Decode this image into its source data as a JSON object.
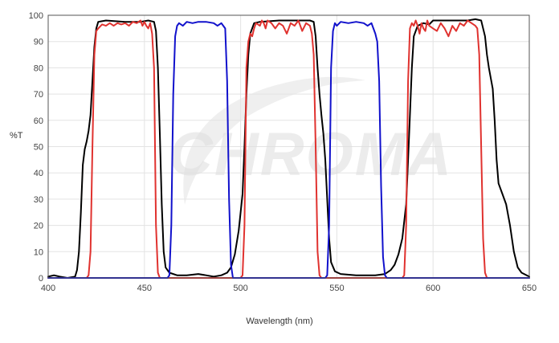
{
  "watermark": "CHROMA",
  "chart_data": {
    "type": "line",
    "title": "",
    "xlabel": "Wavelength (nm)",
    "ylabel": "%T",
    "xlim": [
      400,
      650
    ],
    "ylim": [
      0,
      100
    ],
    "xticks": [
      400,
      450,
      500,
      550,
      600,
      650
    ],
    "yticks": [
      0,
      10,
      20,
      30,
      40,
      50,
      60,
      70,
      80,
      90,
      100
    ],
    "grid": true,
    "legend": "none",
    "series": [
      {
        "color": "#000000",
        "points": [
          [
            400,
            0.5
          ],
          [
            403,
            1
          ],
          [
            406,
            0.5
          ],
          [
            410,
            0
          ],
          [
            414,
            0.5
          ],
          [
            415,
            3
          ],
          [
            416,
            10
          ],
          [
            417,
            25
          ],
          [
            418,
            43
          ],
          [
            419,
            49
          ],
          [
            420,
            52
          ],
          [
            421,
            56
          ],
          [
            422,
            62
          ],
          [
            423,
            75
          ],
          [
            424,
            88
          ],
          [
            425,
            95
          ],
          [
            426,
            97.5
          ],
          [
            430,
            98
          ],
          [
            440,
            97.5
          ],
          [
            448,
            97.5
          ],
          [
            452,
            98
          ],
          [
            455,
            97.5
          ],
          [
            456,
            94
          ],
          [
            457,
            80
          ],
          [
            458,
            55
          ],
          [
            459,
            28
          ],
          [
            460,
            10
          ],
          [
            461,
            4
          ],
          [
            463,
            2
          ],
          [
            467,
            1
          ],
          [
            472,
            1
          ],
          [
            478,
            1.5
          ],
          [
            482,
            1
          ],
          [
            486,
            0.5
          ],
          [
            490,
            1
          ],
          [
            493,
            2
          ],
          [
            495,
            4
          ],
          [
            497,
            9
          ],
          [
            499,
            18
          ],
          [
            501,
            32
          ],
          [
            502,
            50
          ],
          [
            503,
            70
          ],
          [
            504,
            85
          ],
          [
            505,
            93
          ],
          [
            507,
            97
          ],
          [
            510,
            97.5
          ],
          [
            520,
            98
          ],
          [
            530,
            98
          ],
          [
            536,
            98
          ],
          [
            538,
            97.5
          ],
          [
            539,
            92
          ],
          [
            540,
            80
          ],
          [
            541,
            70
          ],
          [
            542,
            62
          ],
          [
            543,
            55
          ],
          [
            544,
            45
          ],
          [
            545,
            30
          ],
          [
            546,
            15
          ],
          [
            547,
            6
          ],
          [
            549,
            2.5
          ],
          [
            552,
            1.5
          ],
          [
            560,
            1
          ],
          [
            566,
            1
          ],
          [
            570,
            1
          ],
          [
            575,
            1.5
          ],
          [
            578,
            3
          ],
          [
            580,
            5
          ],
          [
            582,
            9
          ],
          [
            584,
            15
          ],
          [
            586,
            28
          ],
          [
            587,
            45
          ],
          [
            588,
            62
          ],
          [
            589,
            80
          ],
          [
            590,
            92
          ],
          [
            592,
            96
          ],
          [
            595,
            97
          ],
          [
            598,
            96.5
          ],
          [
            600,
            98
          ],
          [
            605,
            98
          ],
          [
            612,
            98
          ],
          [
            618,
            98
          ],
          [
            622,
            98.5
          ],
          [
            625,
            98
          ],
          [
            627,
            92
          ],
          [
            628,
            85
          ],
          [
            629,
            80
          ],
          [
            630,
            76
          ],
          [
            631,
            72
          ],
          [
            632,
            60
          ],
          [
            633,
            45
          ],
          [
            634,
            36
          ],
          [
            636,
            32
          ],
          [
            638,
            28
          ],
          [
            640,
            20
          ],
          [
            642,
            10
          ],
          [
            644,
            4
          ],
          [
            646,
            2
          ],
          [
            650,
            0.5
          ]
        ]
      },
      {
        "color": "#e0322f",
        "points": [
          [
            400,
            0
          ],
          [
            420,
            0
          ],
          [
            421,
            1
          ],
          [
            422,
            10
          ],
          [
            423,
            50
          ],
          [
            424,
            85
          ],
          [
            425,
            94
          ],
          [
            426,
            95
          ],
          [
            428,
            96.5
          ],
          [
            430,
            96
          ],
          [
            432,
            97
          ],
          [
            434,
            96
          ],
          [
            436,
            97
          ],
          [
            438,
            96.5
          ],
          [
            440,
            97
          ],
          [
            442,
            96
          ],
          [
            444,
            97.5
          ],
          [
            446,
            97
          ],
          [
            448,
            98
          ],
          [
            449,
            96
          ],
          [
            450,
            97.5
          ],
          [
            451,
            96
          ],
          [
            452,
            95
          ],
          [
            453,
            97
          ],
          [
            454,
            93
          ],
          [
            455,
            80
          ],
          [
            456,
            20
          ],
          [
            457,
            2
          ],
          [
            458,
            0
          ],
          [
            500,
            0
          ],
          [
            501,
            1
          ],
          [
            502,
            20
          ],
          [
            503,
            80
          ],
          [
            504,
            90
          ],
          [
            505,
            93
          ],
          [
            506,
            92
          ],
          [
            507,
            95
          ],
          [
            508,
            97
          ],
          [
            510,
            96
          ],
          [
            511,
            98
          ],
          [
            512,
            97
          ],
          [
            513,
            95
          ],
          [
            514,
            98
          ],
          [
            516,
            97
          ],
          [
            518,
            95
          ],
          [
            520,
            97
          ],
          [
            522,
            96
          ],
          [
            524,
            93
          ],
          [
            526,
            97
          ],
          [
            528,
            96
          ],
          [
            530,
            98
          ],
          [
            532,
            94
          ],
          [
            534,
            97
          ],
          [
            536,
            96
          ],
          [
            537,
            93
          ],
          [
            538,
            85
          ],
          [
            539,
            50
          ],
          [
            540,
            10
          ],
          [
            541,
            1
          ],
          [
            542,
            0
          ],
          [
            584,
            0
          ],
          [
            585,
            1
          ],
          [
            586,
            20
          ],
          [
            587,
            75
          ],
          [
            588,
            95
          ],
          [
            589,
            97
          ],
          [
            590,
            96
          ],
          [
            591,
            98
          ],
          [
            592,
            96
          ],
          [
            593,
            93
          ],
          [
            594,
            97
          ],
          [
            595,
            95
          ],
          [
            596,
            94
          ],
          [
            597,
            98
          ],
          [
            598,
            96
          ],
          [
            600,
            95
          ],
          [
            602,
            94
          ],
          [
            604,
            97
          ],
          [
            606,
            95
          ],
          [
            608,
            92
          ],
          [
            610,
            96
          ],
          [
            612,
            94
          ],
          [
            614,
            97
          ],
          [
            616,
            96
          ],
          [
            618,
            98
          ],
          [
            620,
            97
          ],
          [
            622,
            96
          ],
          [
            623,
            95
          ],
          [
            624,
            85
          ],
          [
            625,
            50
          ],
          [
            626,
            15
          ],
          [
            627,
            2
          ],
          [
            628,
            0
          ],
          [
            650,
            0
          ]
        ]
      },
      {
        "color": "#1111cc",
        "points": [
          [
            400,
            0
          ],
          [
            462,
            0
          ],
          [
            463,
            1
          ],
          [
            464,
            20
          ],
          [
            465,
            70
          ],
          [
            466,
            92
          ],
          [
            467,
            96
          ],
          [
            468,
            97
          ],
          [
            470,
            96
          ],
          [
            472,
            97.5
          ],
          [
            475,
            97
          ],
          [
            478,
            97.5
          ],
          [
            482,
            97.5
          ],
          [
            486,
            97
          ],
          [
            488,
            96
          ],
          [
            490,
            97
          ],
          [
            491,
            96
          ],
          [
            492,
            95
          ],
          [
            493,
            75
          ],
          [
            494,
            30
          ],
          [
            495,
            5
          ],
          [
            496,
            0
          ],
          [
            544,
            0
          ],
          [
            545,
            1
          ],
          [
            546,
            20
          ],
          [
            547,
            80
          ],
          [
            548,
            94
          ],
          [
            549,
            97
          ],
          [
            550,
            96
          ],
          [
            552,
            97.5
          ],
          [
            556,
            97
          ],
          [
            560,
            97.5
          ],
          [
            564,
            97
          ],
          [
            566,
            96
          ],
          [
            568,
            97
          ],
          [
            569,
            95
          ],
          [
            570,
            93
          ],
          [
            571,
            90
          ],
          [
            572,
            75
          ],
          [
            573,
            35
          ],
          [
            574,
            8
          ],
          [
            575,
            1
          ],
          [
            576,
            0
          ],
          [
            650,
            0
          ]
        ]
      }
    ]
  }
}
